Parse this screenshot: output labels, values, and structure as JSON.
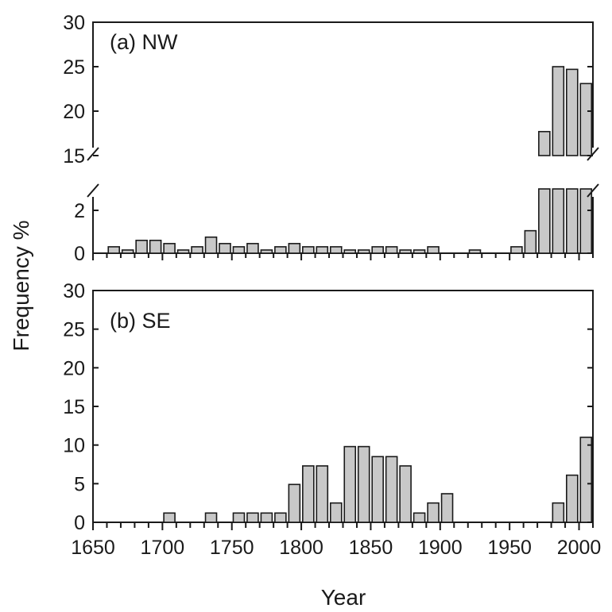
{
  "chart_data": [
    {
      "type": "bar",
      "panel_label": "(a) NW",
      "xlabel": "Year",
      "ylabel": "Frequency %",
      "xlim": [
        1650,
        2010
      ],
      "ylim": [
        0,
        30
      ],
      "broken_y_axis": {
        "lower_range": [
          0,
          3
        ],
        "upper_range": [
          15,
          30
        ]
      },
      "y_ticks_lower": [
        0,
        2
      ],
      "y_ticks_upper": [
        15,
        20,
        25,
        30
      ],
      "grid": false,
      "bar_width_years": 8,
      "x": [
        1665,
        1675,
        1685,
        1695,
        1705,
        1715,
        1725,
        1735,
        1745,
        1755,
        1765,
        1775,
        1785,
        1795,
        1805,
        1815,
        1825,
        1835,
        1845,
        1855,
        1865,
        1875,
        1885,
        1895,
        1925,
        1955,
        1965,
        1975,
        1985,
        1995,
        2005
      ],
      "values": [
        0.3,
        0.15,
        0.6,
        0.6,
        0.45,
        0.15,
        0.3,
        0.75,
        0.45,
        0.3,
        0.45,
        0.15,
        0.3,
        0.45,
        0.3,
        0.3,
        0.3,
        0.15,
        0.15,
        0.3,
        0.3,
        0.15,
        0.15,
        0.3,
        0.15,
        0.3,
        1.05,
        17.7,
        25.0,
        24.7,
        23.1
      ]
    },
    {
      "type": "bar",
      "panel_label": "(b) SE",
      "xlabel": "Year",
      "ylabel": "Frequency %",
      "xlim": [
        1650,
        2010
      ],
      "ylim": [
        0,
        30
      ],
      "y_ticks": [
        0,
        5,
        10,
        15,
        20,
        25,
        30
      ],
      "x_ticks": [
        1650,
        1700,
        1750,
        1800,
        1850,
        1900,
        1950,
        2000
      ],
      "grid": false,
      "bar_width_years": 8,
      "x": [
        1705,
        1735,
        1755,
        1765,
        1775,
        1785,
        1795,
        1805,
        1815,
        1825,
        1835,
        1845,
        1855,
        1865,
        1875,
        1885,
        1895,
        1905,
        1985,
        1995,
        2005
      ],
      "values": [
        1.2,
        1.2,
        1.2,
        1.2,
        1.2,
        1.2,
        4.9,
        7.3,
        7.3,
        2.5,
        9.8,
        9.8,
        8.5,
        8.5,
        7.3,
        1.2,
        2.5,
        3.7,
        2.5,
        6.1,
        11.0
      ]
    }
  ]
}
